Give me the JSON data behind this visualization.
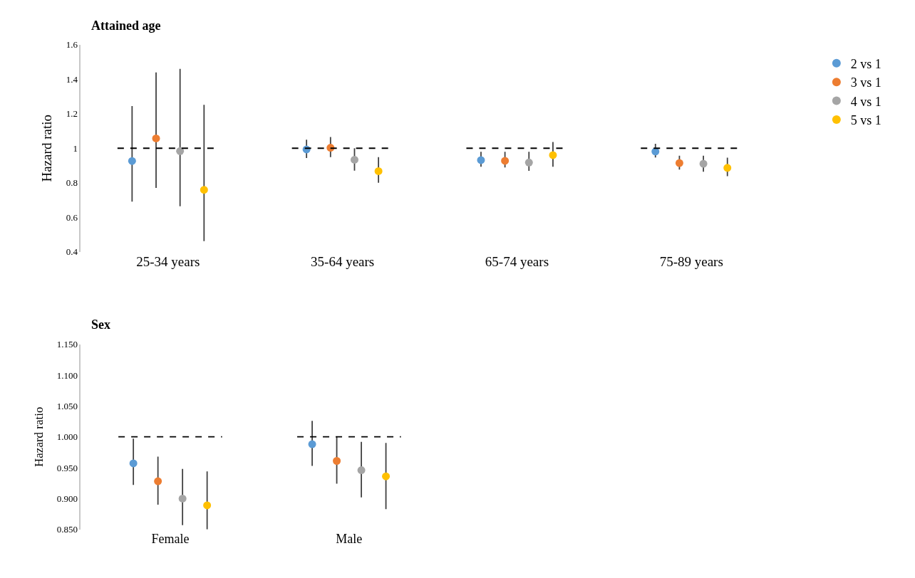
{
  "chart_data": [
    {
      "type": "scatter",
      "title": "Attained age",
      "ylabel": "Hazard ratio",
      "categories": [
        "25-34 years",
        "35-64 years",
        "65-74 years",
        "75-89 years"
      ],
      "series": [
        {
          "name": "2 vs 1",
          "color": "#5b9bd5",
          "values": [
            0.926,
            0.993,
            0.931,
            0.981
          ],
          "errors": [
            [
              0.69,
              1.245
            ],
            [
              0.943,
              1.05
            ],
            [
              0.893,
              0.979
            ],
            [
              0.946,
              1.026
            ]
          ]
        },
        {
          "name": "3 vs 1",
          "color": "#ed7d31",
          "values": [
            1.057,
            1.003,
            0.927,
            0.914
          ],
          "errors": [
            [
              0.77,
              1.44
            ],
            [
              0.948,
              1.065
            ],
            [
              0.889,
              0.979
            ],
            [
              0.876,
              0.957
            ]
          ]
        },
        {
          "name": "4 vs 1",
          "color": "#a5a5a5",
          "values": [
            0.983,
            0.933,
            0.917,
            0.91
          ],
          "errors": [
            [
              0.664,
              1.46
            ],
            [
              0.87,
              1.0
            ],
            [
              0.869,
              0.979
            ],
            [
              0.864,
              0.957
            ]
          ]
        },
        {
          "name": "5 vs 1",
          "color": "#ffc000",
          "values": [
            0.759,
            0.867,
            0.96,
            0.886
          ],
          "errors": [
            [
              0.461,
              1.252
            ],
            [
              0.8,
              0.948
            ],
            [
              0.893,
              1.036
            ],
            [
              0.838,
              0.945
            ]
          ]
        }
      ],
      "ylim": [
        0.4,
        1.6
      ],
      "yticks": [
        0.4,
        0.6,
        0.8,
        1,
        1.2,
        1.4,
        1.6
      ],
      "ref_lines": [
        {
          "axis": "y",
          "value": 1,
          "line_style": "dashed"
        }
      ],
      "legend": "right",
      "marker": "circle"
    },
    {
      "type": "scatter",
      "title": "Sex",
      "ylabel": "Hazard ratio",
      "categories": [
        "Female",
        "Male"
      ],
      "series": [
        {
          "color": "#5b9bd5",
          "values": [
            0.957,
            0.988
          ],
          "errors": [
            [
              0.922,
              0.997
            ],
            [
              0.953,
              1.026
            ]
          ]
        },
        {
          "color": "#ed7d31",
          "values": [
            0.928,
            0.961
          ],
          "errors": [
            [
              0.89,
              0.968
            ],
            [
              0.924,
              1.0
            ]
          ]
        },
        {
          "color": "#a5a5a5",
          "values": [
            0.9,
            0.946
          ],
          "errors": [
            [
              0.857,
              0.948
            ],
            [
              0.902,
              0.992
            ]
          ]
        },
        {
          "color": "#ffc000",
          "values": [
            0.889,
            0.936
          ],
          "errors": [
            [
              0.85,
              0.944
            ],
            [
              0.883,
              0.99
            ]
          ]
        }
      ],
      "ylim": [
        0.85,
        1.15
      ],
      "yticks": [
        {
          "value": 0.85,
          "label": "0.850"
        },
        {
          "value": 0.9,
          "label": "0.900"
        },
        {
          "value": 0.95,
          "label": "0.950"
        },
        {
          "value": 1.0,
          "label": "1.000"
        },
        {
          "value": 1.05,
          "label": "1.050"
        },
        {
          "value": 1.1,
          "label": "1.100"
        },
        {
          "value": 1.15,
          "label": "1.150"
        }
      ],
      "ref_lines": [
        {
          "axis": "y",
          "value": 1,
          "line_style": "dashed"
        }
      ],
      "legend": false,
      "marker": "circle"
    }
  ]
}
